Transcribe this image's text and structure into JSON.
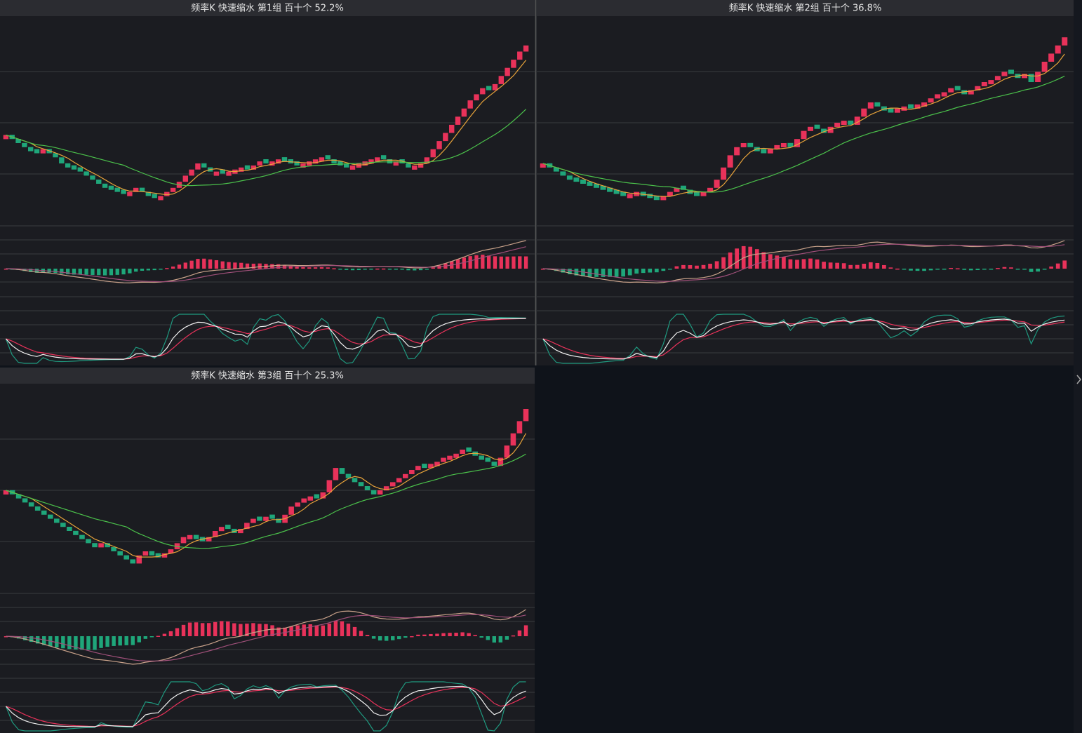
{
  "chart_data": [
    {
      "type": "renko",
      "title": "频率K  快速缩水  第1组  百十个  52.2%",
      "ylim": [
        0,
        100
      ],
      "values": [
        44,
        42,
        40,
        38,
        36,
        35,
        37,
        35,
        33,
        30,
        28,
        27,
        26,
        24,
        22,
        20,
        18,
        17,
        16,
        15,
        16,
        18,
        16,
        14,
        13,
        14,
        16,
        18,
        21,
        24,
        27,
        30,
        28,
        26,
        26,
        25,
        26,
        27,
        28,
        27,
        29,
        31,
        30,
        31,
        32,
        31,
        30,
        29,
        30,
        31,
        32,
        33,
        32,
        30,
        29,
        28,
        29,
        30,
        31,
        32,
        33,
        32,
        30,
        31,
        30,
        28,
        29,
        30,
        33,
        37,
        41,
        45,
        49,
        53,
        57,
        61,
        64,
        67,
        66,
        69,
        73,
        77,
        81,
        85,
        88
      ]
    },
    {
      "type": "renko",
      "title": "频率K  快速缩水  第2组  百十个  36.8%",
      "ylim": [
        0,
        100
      ],
      "values": [
        30,
        28,
        26,
        24,
        22,
        21,
        20,
        19,
        18,
        17,
        16,
        15,
        14,
        15,
        16,
        14,
        13,
        12,
        14,
        16,
        18,
        17,
        15,
        14,
        16,
        18,
        22,
        28,
        34,
        38,
        40,
        38,
        36,
        35,
        37,
        39,
        40,
        38,
        42,
        46,
        48,
        47,
        45,
        48,
        50,
        51,
        49,
        53,
        57,
        60,
        58,
        56,
        55,
        57,
        58,
        57,
        59,
        60,
        62,
        64,
        65,
        67,
        66,
        64,
        66,
        68,
        70,
        71,
        73,
        75,
        74,
        72,
        74,
        70,
        75,
        80,
        84,
        88,
        92
      ]
    },
    {
      "type": "renko",
      "title": "频率K  快速缩水  第3组  百十个  25.3%",
      "ylim": [
        0,
        100
      ],
      "values": [
        50,
        48,
        46,
        44,
        42,
        40,
        38,
        36,
        34,
        32,
        30,
        28,
        26,
        24,
        22,
        24,
        22,
        20,
        18,
        16,
        14,
        18,
        20,
        18,
        17,
        19,
        21,
        24,
        27,
        28,
        26,
        25,
        27,
        30,
        32,
        31,
        29,
        31,
        34,
        36,
        35,
        37,
        36,
        34,
        38,
        42,
        44,
        46,
        47,
        46,
        49,
        55,
        61,
        58,
        56,
        54,
        52,
        50,
        48,
        50,
        52,
        54,
        56,
        58,
        60,
        62,
        61,
        63,
        64,
        66,
        67,
        68,
        70,
        69,
        67,
        65,
        64,
        62,
        66,
        72,
        78,
        84,
        90
      ]
    }
  ]
}
